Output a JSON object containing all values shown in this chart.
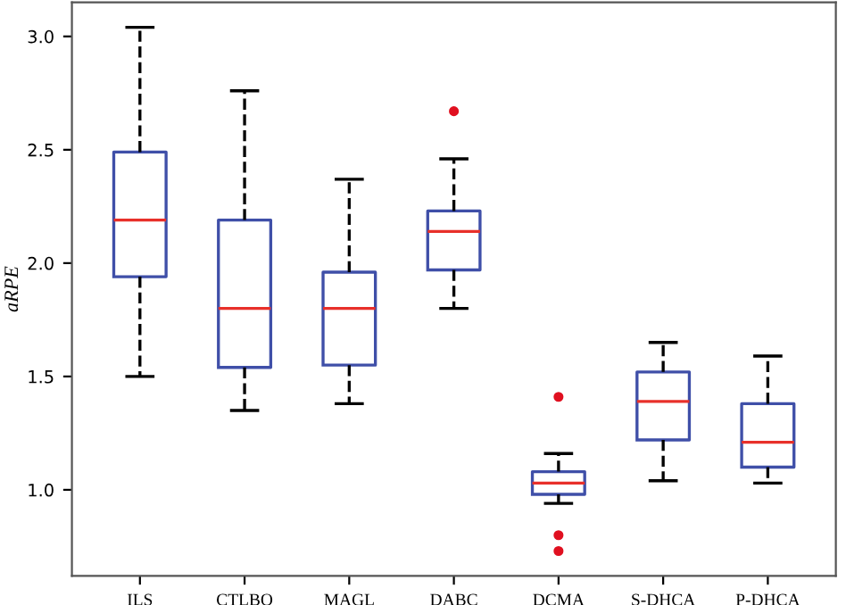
{
  "chart_data": {
    "type": "box",
    "ylabel": "aRPE",
    "categories": [
      "ILS",
      "CTLBO",
      "MAGL",
      "DABC",
      "DCMA",
      "S-DHCA",
      "P-DHCA"
    ],
    "boxes": [
      {
        "low": 1.5,
        "q1": 1.94,
        "median": 2.19,
        "q3": 2.49,
        "high": 3.04
      },
      {
        "low": 1.35,
        "q1": 1.54,
        "median": 1.8,
        "q3": 2.19,
        "high": 2.76
      },
      {
        "low": 1.38,
        "q1": 1.55,
        "median": 1.8,
        "q3": 1.96,
        "high": 2.37
      },
      {
        "low": 1.8,
        "q1": 1.97,
        "median": 2.14,
        "q3": 2.23,
        "high": 2.46,
        "outliers": [
          2.67
        ]
      },
      {
        "low": 0.94,
        "q1": 0.98,
        "median": 1.03,
        "q3": 1.08,
        "high": 1.16,
        "outliers": [
          1.41,
          0.8,
          0.73
        ]
      },
      {
        "low": 1.04,
        "q1": 1.22,
        "median": 1.39,
        "q3": 1.52,
        "high": 1.65
      },
      {
        "low": 1.03,
        "q1": 1.1,
        "median": 1.21,
        "q3": 1.38,
        "high": 1.59
      }
    ],
    "color": "#3f4fa8",
    "ylim": [
      0.62,
      3.15
    ],
    "yticks": [
      {
        "value": 1,
        "label": "1.0"
      },
      1.5,
      {
        "value": 2,
        "label": "2.0"
      },
      2.5,
      {
        "value": 3,
        "label": "3.0"
      }
    ],
    "grid": false,
    "line_style": "dashed"
  }
}
